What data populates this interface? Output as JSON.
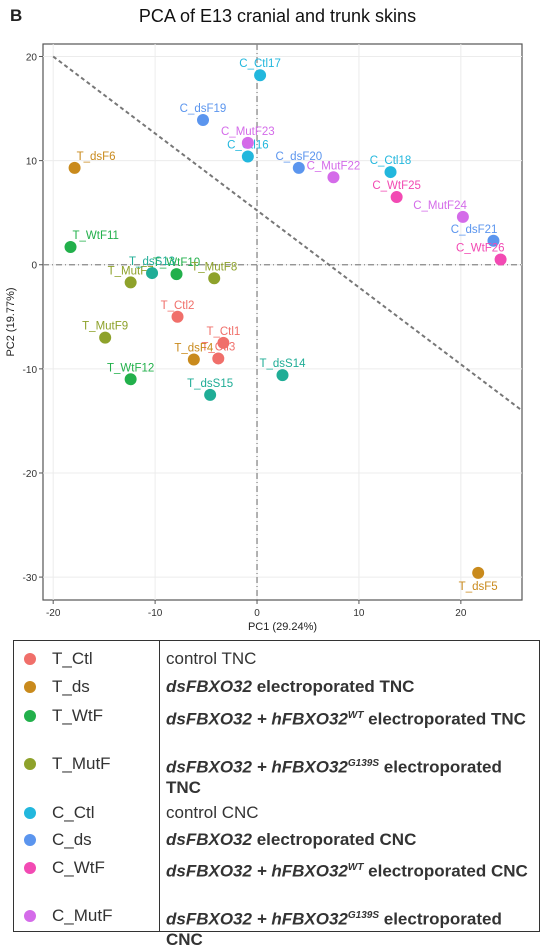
{
  "panel_letter": "B",
  "chart_data": {
    "type": "scatter",
    "title": "PCA of E13 cranial and trunk skins",
    "xlabel": "PC1 (29.24%)",
    "ylabel": "PC2 (19.77%)",
    "xlim": [
      -21,
      26
    ],
    "ylim": [
      -32.2,
      21.2
    ],
    "xticks": [
      -20,
      -10,
      0,
      10,
      20
    ],
    "yticks": [
      20,
      10,
      0,
      -10,
      -20,
      -30
    ],
    "x_tick_labels": [
      "-20",
      "-10",
      "0",
      "10",
      "20"
    ],
    "y_tick_labels": [
      "20",
      "10",
      "0",
      "-10",
      "-20",
      "-30"
    ],
    "grid": true,
    "reference_lines": {
      "x": 0,
      "y": 0,
      "diagonal": [
        [
          -20,
          20
        ],
        [
          26,
          -14
        ]
      ]
    },
    "colors": {
      "T_Ctl": "#f06f6a",
      "T_ds": "#c98a1c",
      "T_WtF": "#22b04b",
      "T_MutF": "#8ea22b",
      "C_Ctl": "#22b7dd",
      "C_ds": "#5b95ee",
      "C_WtF": "#f24ab3",
      "C_MutF": "#d46be9"
    },
    "series": [
      {
        "name": "T_Ctl",
        "points": [
          {
            "x": -7.8,
            "y": -5.0,
            "label": "T_Ctl2"
          },
          {
            "x": -3.3,
            "y": -7.5,
            "label": "T_Ctl1"
          },
          {
            "x": -3.8,
            "y": -9.0,
            "label": "T_Ctl3"
          }
        ]
      },
      {
        "name": "T_ds",
        "points": [
          {
            "x": -17.9,
            "y": 9.3,
            "label": "T_dsF6"
          },
          {
            "x": -6.2,
            "y": -9.1,
            "label": "T_dsF4"
          },
          {
            "x": 21.7,
            "y": -29.6,
            "label": "T_dsF5"
          }
        ]
      },
      {
        "name": "T_WtF",
        "points": [
          {
            "x": -18.3,
            "y": 1.7,
            "label": "T_WtF11"
          },
          {
            "x": -7.9,
            "y": -0.9,
            "label": "T_WtF10"
          },
          {
            "x": -12.4,
            "y": -11.0,
            "label": "T_WtF12"
          }
        ]
      },
      {
        "name": "T_MutF",
        "points": [
          {
            "x": -12.4,
            "y": -1.7,
            "label": "T_MutF7"
          },
          {
            "x": -4.2,
            "y": -1.3,
            "label": "T_MutF8"
          },
          {
            "x": -14.9,
            "y": -7.0,
            "label": "T_MutF9"
          }
        ]
      },
      {
        "name": "T_dsS",
        "points": [
          {
            "x": -10.3,
            "y": -0.8,
            "label": "T_dsS13"
          },
          {
            "x": -4.6,
            "y": -12.5,
            "label": "T_dsS15"
          },
          {
            "x": 2.5,
            "y": -10.6,
            "label": "T_dsS14"
          }
        ]
      },
      {
        "name": "C_Ctl",
        "points": [
          {
            "x": 0.3,
            "y": 18.2,
            "label": "C_Ctl17"
          },
          {
            "x": -0.9,
            "y": 10.4,
            "label": "C_Ctl16"
          },
          {
            "x": 13.1,
            "y": 8.9,
            "label": "C_Ctl18"
          }
        ]
      },
      {
        "name": "C_ds",
        "points": [
          {
            "x": -5.3,
            "y": 13.9,
            "label": "C_dsF19"
          },
          {
            "x": 4.1,
            "y": 9.3,
            "label": "C_dsF20"
          },
          {
            "x": 23.2,
            "y": 2.3,
            "label": "C_dsF21"
          }
        ]
      },
      {
        "name": "C_WtF",
        "points": [
          {
            "x": 13.7,
            "y": 6.5,
            "label": "C_WtF25"
          },
          {
            "x": 23.9,
            "y": 0.5,
            "label": "C_WtF26"
          }
        ]
      },
      {
        "name": "C_MutF",
        "points": [
          {
            "x": -0.9,
            "y": 11.7,
            "label": "C_MutF23"
          },
          {
            "x": 7.5,
            "y": 8.4,
            "label": "C_MutF22"
          },
          {
            "x": 20.2,
            "y": 4.6,
            "label": "C_MutF24"
          }
        ]
      }
    ]
  },
  "legend": [
    {
      "key": "T_Ctl",
      "desc": "control TNC",
      "bold": false
    },
    {
      "key": "T_ds",
      "desc_main": "dsFBXO32",
      "desc_rest": " electroporated TNC",
      "bold": true
    },
    {
      "key": "T_WtF",
      "desc_main": "dsFBXO32 + hFBXO32",
      "sup": "WT",
      "desc_rest": " electroporated TNC",
      "bold": true
    },
    {
      "key": "T_MutF",
      "desc_main": "dsFBXO32 + hFBXO32",
      "sup": "G139S",
      "desc_rest": " electroporated TNC",
      "bold": true
    },
    {
      "key": "C_Ctl",
      "desc": "control CNC",
      "bold": false
    },
    {
      "key": "C_ds",
      "desc_main": "dsFBXO32",
      "desc_rest": " electroporated CNC",
      "bold": true
    },
    {
      "key": "C_WtF",
      "desc_main": "dsFBXO32 + hFBXO32",
      "sup": "WT",
      "desc_rest": " electroporated CNC",
      "bold": true
    },
    {
      "key": "C_MutF",
      "desc_main": "dsFBXO32 + hFBXO32",
      "sup": "G139S",
      "desc_rest": " electroporated CNC",
      "bold": true
    }
  ]
}
